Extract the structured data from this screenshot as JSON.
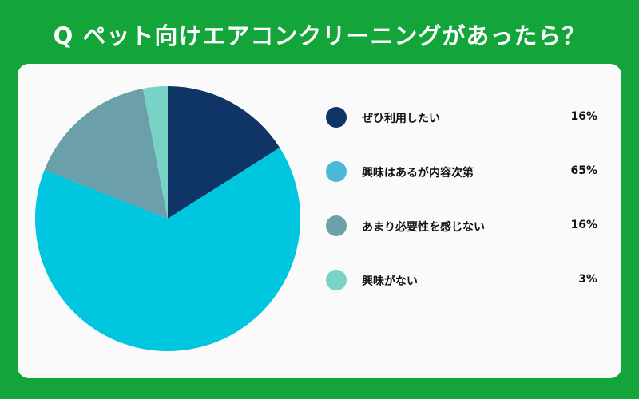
{
  "title": "Q ペット向けエアコンクリーニングがあったら？",
  "colors": {
    "background": "#13a43a",
    "card": "#fafafa"
  },
  "chart_data": {
    "type": "pie",
    "title": "Q ペット向けエアコンクリーニングがあったら？",
    "categories": [
      "ぜひ利用したい",
      "興味はあるが内容次第",
      "あまり必要性を感じない",
      "興味がない"
    ],
    "values": [
      16,
      65,
      16,
      3
    ],
    "value_labels": [
      "16%",
      "65%",
      "16%",
      "3%"
    ],
    "colors": [
      "#0f3566",
      "#00c6df",
      "#6b9fa9",
      "#79d2c6"
    ],
    "legend_colors": [
      "#0f3566",
      "#4ab8d6",
      "#6b9fa9",
      "#79d2c6"
    ],
    "legend_position": "right",
    "start": "top",
    "direction": "clockwise"
  }
}
